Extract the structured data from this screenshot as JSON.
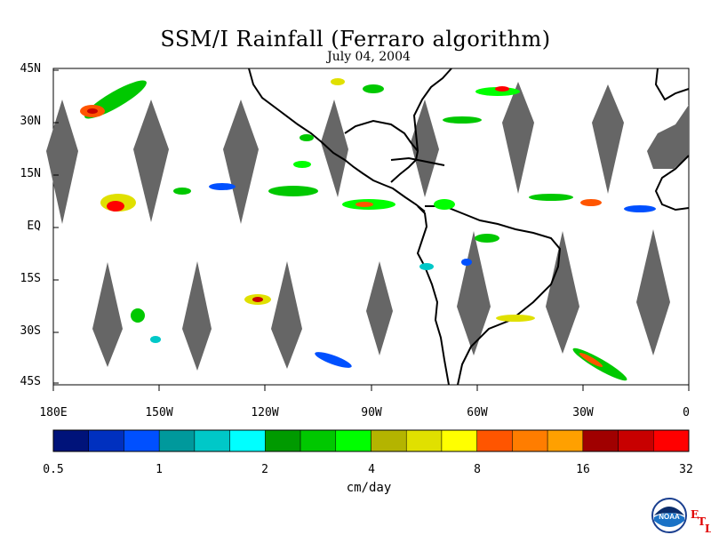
{
  "title": "SSM/I Rainfall (Ferraro algorithm)",
  "date": "July 04, 2004",
  "latitude_labels": [
    "45N",
    "30N",
    "15N",
    "EQ",
    "15S",
    "30S",
    "45S"
  ],
  "longitude_labels": [
    "180E",
    "150W",
    "120W",
    "90W",
    "60W",
    "30W",
    "0"
  ],
  "colorbar": {
    "units": "cm/day",
    "tick_labels": [
      "0.5",
      "1",
      "2",
      "4",
      "8",
      "16",
      "32"
    ],
    "colors": [
      "#00137a",
      "#0030bf",
      "#0050ff",
      "#00999c",
      "#00c8c8",
      "#00ffff",
      "#009a00",
      "#00c800",
      "#00ff00",
      "#b4b400",
      "#e0e000",
      "#ffff00",
      "#ff5500",
      "#ff7d00",
      "#ffa000",
      "#a00000",
      "#c80000",
      "#ff0000"
    ]
  },
  "map": {
    "missing_data_color": "#666666",
    "background_color": "#ffffff",
    "coastline_color": "#000000"
  },
  "logo": {
    "icon": "noaa-logo-icon",
    "text": "NOAA"
  },
  "etl_letters": [
    "E",
    "T",
    "L"
  ]
}
